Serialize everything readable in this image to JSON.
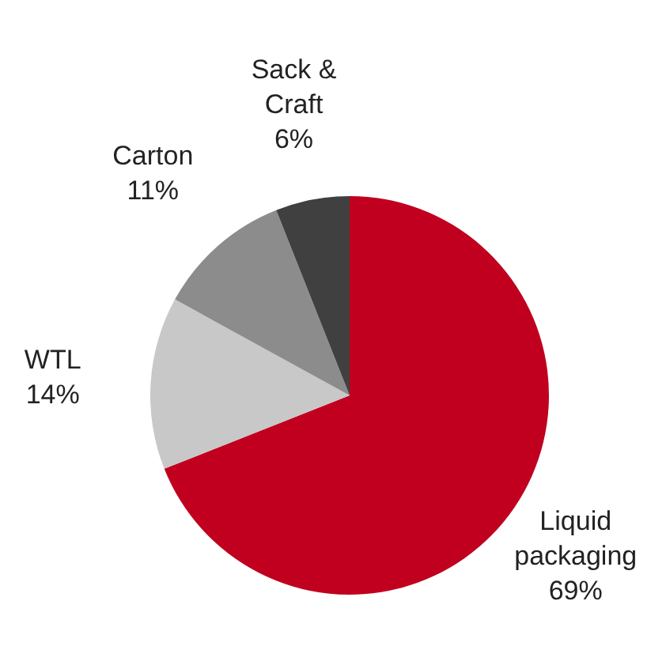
{
  "chart_data": {
    "type": "pie",
    "categories": [
      "Liquid packaging",
      "WTL",
      "Carton",
      "Sack & Craft"
    ],
    "values": [
      69,
      14,
      11,
      6
    ],
    "colors": [
      "#c0001e",
      "#c8c8c8",
      "#8c8c8c",
      "#404040"
    ],
    "value_labels": [
      "69%",
      "14%",
      "11%",
      "6%"
    ],
    "legend": false
  }
}
